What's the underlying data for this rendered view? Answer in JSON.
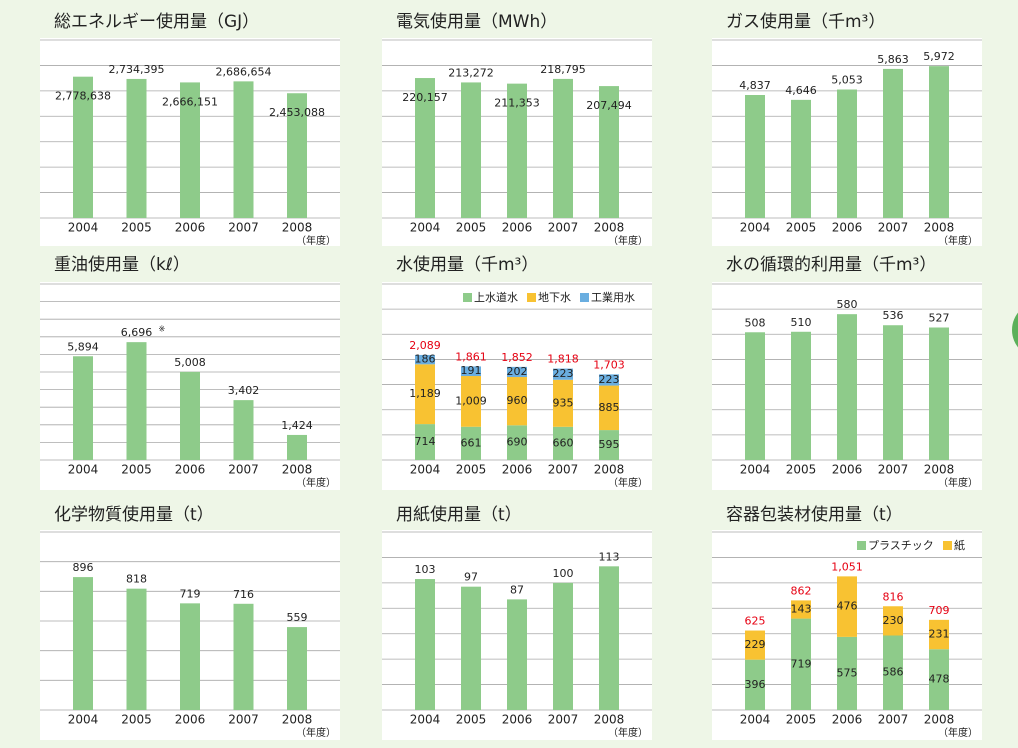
{
  "chart_data": [
    {
      "type": "bar",
      "title": "総エネルギー使用量（GJ）",
      "categories": [
        "2004",
        "2005",
        "2006",
        "2007",
        "2008"
      ],
      "values": [
        2778638,
        2734395,
        2666151,
        2686654,
        2453088
      ],
      "value_labels": [
        "2,778,638",
        "2,734,395",
        "2,666,151",
        "2,686,654",
        "2,453,088"
      ],
      "color": "#8ecb8a",
      "ylim": [
        0,
        3500000
      ],
      "yticks": [
        0,
        500000,
        1000000,
        1500000,
        2000000,
        2500000,
        3000000,
        3500000
      ],
      "grid": true,
      "x_unit": "（年度）"
    },
    {
      "type": "bar",
      "title": "電気使用量（MWh）",
      "categories": [
        "2004",
        "2005",
        "2006",
        "2007",
        "2008"
      ],
      "values": [
        220157,
        213272,
        211353,
        218795,
        207494
      ],
      "value_labels": [
        "220,157",
        "213,272",
        "211,353",
        "218,795",
        "207,494"
      ],
      "color": "#8ecb8a",
      "ylim": [
        0,
        280000
      ],
      "yticks": [
        0,
        40000,
        80000,
        120000,
        160000,
        200000,
        240000,
        280000
      ],
      "grid": true,
      "x_unit": "（年度）"
    },
    {
      "type": "bar",
      "title": "ガス使用量（千m³）",
      "categories": [
        "2004",
        "2005",
        "2006",
        "2007",
        "2008"
      ],
      "values": [
        4837,
        4646,
        5053,
        5863,
        5972
      ],
      "value_labels": [
        "4,837",
        "4,646",
        "5,053",
        "5,863",
        "5,972"
      ],
      "color": "#8ecb8a",
      "ylim": [
        0,
        7000
      ],
      "yticks": [
        0,
        1000,
        2000,
        3000,
        4000,
        5000,
        6000,
        7000
      ],
      "grid": true,
      "x_unit": "（年度）"
    },
    {
      "type": "bar",
      "title": "重油使用量（kℓ）",
      "categories": [
        "2004",
        "2005",
        "2006",
        "2007",
        "2008"
      ],
      "values": [
        5894,
        6696,
        5008,
        3402,
        1424
      ],
      "value_labels": [
        "5,894",
        "6,696",
        "5,008",
        "3,402",
        "1,424"
      ],
      "note_mark": "※",
      "color": "#8ecb8a",
      "ylim": [
        0,
        10000
      ],
      "yticks": [
        0,
        1000,
        2000,
        3000,
        4000,
        5000,
        6000,
        7000,
        8000,
        9000,
        10000
      ],
      "grid": true,
      "x_unit": "（年度）"
    },
    {
      "type": "stacked_bar",
      "title": "水使用量（千m³）",
      "categories": [
        "2004",
        "2005",
        "2006",
        "2007",
        "2008"
      ],
      "series": [
        {
          "name": "上水道水",
          "color": "#8ecb8a",
          "values": [
            714,
            661,
            690,
            660,
            595
          ]
        },
        {
          "name": "地下水",
          "color": "#f8c232",
          "values": [
            1189,
            1009,
            960,
            935,
            885
          ],
          "value_labels": [
            "1,189",
            "1,009",
            "960",
            "935",
            "885"
          ]
        },
        {
          "name": "工業用水",
          "color": "#6aaee0",
          "values": [
            186,
            191,
            202,
            223,
            223
          ]
        }
      ],
      "total_labels": [
        "2,089",
        "1,861",
        "1,852",
        "1,818",
        "1,703"
      ],
      "ylim": [
        0,
        3500
      ],
      "yticks": [
        0,
        500,
        1000,
        1500,
        2000,
        2500,
        3000,
        3500
      ],
      "grid": true,
      "x_unit": "（年度）"
    },
    {
      "type": "bar",
      "title": "水の循環的利用量（千m³）",
      "categories": [
        "2004",
        "2005",
        "2006",
        "2007",
        "2008"
      ],
      "values": [
        508,
        510,
        580,
        536,
        527
      ],
      "color": "#8ecb8a",
      "ylim": [
        0,
        700
      ],
      "yticks": [
        0,
        100,
        200,
        300,
        400,
        500,
        600,
        700
      ],
      "grid": true,
      "x_unit": "（年度）"
    },
    {
      "type": "bar",
      "title": "化学物質使用量（t）",
      "categories": [
        "2004",
        "2005",
        "2006",
        "2007",
        "2008"
      ],
      "values": [
        896,
        818,
        719,
        716,
        559
      ],
      "color": "#8ecb8a",
      "ylim": [
        0,
        1200
      ],
      "yticks": [
        0,
        200,
        400,
        600,
        800,
        1000,
        1200
      ],
      "grid": true,
      "x_unit": "（年度）"
    },
    {
      "type": "bar",
      "title": "用紙使用量（t）",
      "categories": [
        "2004",
        "2005",
        "2006",
        "2007",
        "2008"
      ],
      "values": [
        103,
        97,
        87,
        100,
        113
      ],
      "color": "#8ecb8a",
      "ylim": [
        0,
        140
      ],
      "yticks": [
        0,
        20,
        40,
        60,
        80,
        100,
        120,
        140
      ],
      "grid": true,
      "x_unit": "（年度）"
    },
    {
      "type": "stacked_bar",
      "title": "容器包装材使用量（t）",
      "categories": [
        "2004",
        "2005",
        "2006",
        "2007",
        "2008"
      ],
      "series": [
        {
          "name": "プラスチック",
          "color": "#8ecb8a",
          "values": [
            396,
            719,
            575,
            586,
            478
          ]
        },
        {
          "name": "紙",
          "color": "#f8c232",
          "values": [
            229,
            143,
            476,
            230,
            231
          ]
        }
      ],
      "total_labels": [
        "625",
        "862",
        "1,051",
        "816",
        "709"
      ],
      "ylim": [
        0,
        1400
      ],
      "yticks": [
        0,
        200,
        400,
        600,
        800,
        1000,
        1200,
        1400
      ],
      "grid": true,
      "x_unit": "（年度）"
    }
  ]
}
